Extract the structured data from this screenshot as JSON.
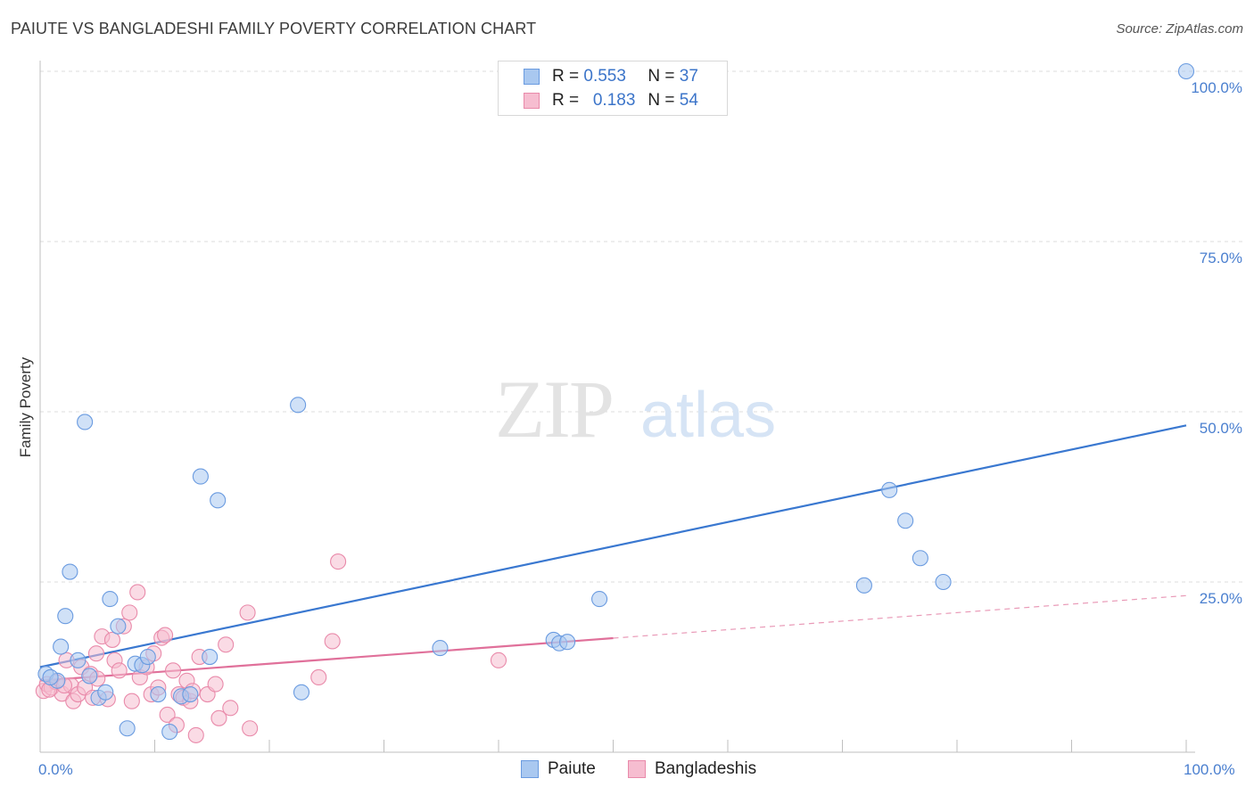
{
  "title": "PAIUTE VS BANGLADESHI FAMILY POVERTY CORRELATION CHART",
  "source": "Source: ZipAtlas.com",
  "watermark": {
    "zip": "ZIP",
    "atlas": "atlas"
  },
  "legend": [
    {
      "r_label": "R =",
      "r_value": "0.553",
      "n_label": "N =",
      "n_value": "37",
      "color": "#a9c8f0",
      "stroke": "#6a9be0"
    },
    {
      "r_label": "R =",
      "r_value": "0.183",
      "n_label": "N =",
      "n_value": "54",
      "color": "#f6bdd0",
      "stroke": "#e98aaa"
    }
  ],
  "bottom_legend": [
    {
      "label": "Paiute",
      "color": "#a9c8f0",
      "stroke": "#6a9be0"
    },
    {
      "label": "Bangladeshis",
      "color": "#f6bdd0",
      "stroke": "#e98aaa"
    }
  ],
  "chart_data": {
    "type": "scatter",
    "title": "PAIUTE VS BANGLADESHI FAMILY POVERTY CORRELATION CHART",
    "xlabel": "",
    "ylabel": "Family Poverty",
    "xlim": [
      0,
      100
    ],
    "ylim": [
      0,
      100
    ],
    "x_ticks": [
      "0.0%",
      "100.0%"
    ],
    "y_ticks": [
      {
        "value": 25,
        "label": "25.0%"
      },
      {
        "value": 50,
        "label": "50.0%"
      },
      {
        "value": 75,
        "label": "75.0%"
      },
      {
        "value": 100,
        "label": "100.0%"
      }
    ],
    "series": [
      {
        "name": "Paiute",
        "color": "#6a9be0",
        "fill": "#a9c8f0",
        "line_color": "#3a78d0",
        "trend": {
          "x0": 0,
          "y0": 12.5,
          "x1": 100,
          "y1": 48.0,
          "solid_to": 100
        },
        "points": [
          [
            0.5,
            11.5
          ],
          [
            1.5,
            10.5
          ],
          [
            1.8,
            15.5
          ],
          [
            2.2,
            20.0
          ],
          [
            2.6,
            26.5
          ],
          [
            3.3,
            13.5
          ],
          [
            3.9,
            48.5
          ],
          [
            4.3,
            11.2
          ],
          [
            5.1,
            8.0
          ],
          [
            5.7,
            8.8
          ],
          [
            6.1,
            22.5
          ],
          [
            6.8,
            18.5
          ],
          [
            7.6,
            3.5
          ],
          [
            8.3,
            13.0
          ],
          [
            8.9,
            12.8
          ],
          [
            9.4,
            14.0
          ],
          [
            10.3,
            8.5
          ],
          [
            11.3,
            3.0
          ],
          [
            12.3,
            8.2
          ],
          [
            13.1,
            8.5
          ],
          [
            14.0,
            40.5
          ],
          [
            14.8,
            14.0
          ],
          [
            15.5,
            37.0
          ],
          [
            22.5,
            51.0
          ],
          [
            22.8,
            8.8
          ],
          [
            34.9,
            15.3
          ],
          [
            44.8,
            16.5
          ],
          [
            45.3,
            16.0
          ],
          [
            46.0,
            16.2
          ],
          [
            48.8,
            22.5
          ],
          [
            71.9,
            24.5
          ],
          [
            74.1,
            38.5
          ],
          [
            75.5,
            34.0
          ],
          [
            76.8,
            28.5
          ],
          [
            78.8,
            25.0
          ],
          [
            100.0,
            100.0
          ],
          [
            0.9,
            11.0
          ]
        ]
      },
      {
        "name": "Bangladeshis",
        "color": "#e98aaa",
        "fill": "#f6bdd0",
        "line_color": "#e0709a",
        "trend": {
          "x0": 0,
          "y0": 10.5,
          "x1": 100,
          "y1": 23.0,
          "solid_to": 50
        },
        "points": [
          [
            0.3,
            9.0
          ],
          [
            0.6,
            10.0
          ],
          [
            1.0,
            9.5
          ],
          [
            1.4,
            10.3
          ],
          [
            1.9,
            8.6
          ],
          [
            2.3,
            13.5
          ],
          [
            2.7,
            9.8
          ],
          [
            2.9,
            7.5
          ],
          [
            3.3,
            8.5
          ],
          [
            3.6,
            12.5
          ],
          [
            3.9,
            9.5
          ],
          [
            4.4,
            11.5
          ],
          [
            4.6,
            8.0
          ],
          [
            4.9,
            14.5
          ],
          [
            5.4,
            17.0
          ],
          [
            5.9,
            7.8
          ],
          [
            6.3,
            16.5
          ],
          [
            6.5,
            13.5
          ],
          [
            6.9,
            12.0
          ],
          [
            7.3,
            18.5
          ],
          [
            7.8,
            20.5
          ],
          [
            8.0,
            7.5
          ],
          [
            8.5,
            23.5
          ],
          [
            8.7,
            11.0
          ],
          [
            9.3,
            12.5
          ],
          [
            9.7,
            8.5
          ],
          [
            9.9,
            14.5
          ],
          [
            10.3,
            9.5
          ],
          [
            10.6,
            16.8
          ],
          [
            10.9,
            17.2
          ],
          [
            11.1,
            5.5
          ],
          [
            11.6,
            12.0
          ],
          [
            11.9,
            4.0
          ],
          [
            12.1,
            8.5
          ],
          [
            12.5,
            8.0
          ],
          [
            12.8,
            10.5
          ],
          [
            13.1,
            7.5
          ],
          [
            13.3,
            9.0
          ],
          [
            13.6,
            2.5
          ],
          [
            13.9,
            14.0
          ],
          [
            14.6,
            8.5
          ],
          [
            15.3,
            10.0
          ],
          [
            15.6,
            5.0
          ],
          [
            16.2,
            15.8
          ],
          [
            16.6,
            6.5
          ],
          [
            18.1,
            20.5
          ],
          [
            18.3,
            3.5
          ],
          [
            24.3,
            11.0
          ],
          [
            25.5,
            16.3
          ],
          [
            26.0,
            28.0
          ],
          [
            40.0,
            13.5
          ],
          [
            0.8,
            9.2
          ],
          [
            2.1,
            9.8
          ],
          [
            5.0,
            10.8
          ]
        ]
      }
    ]
  }
}
